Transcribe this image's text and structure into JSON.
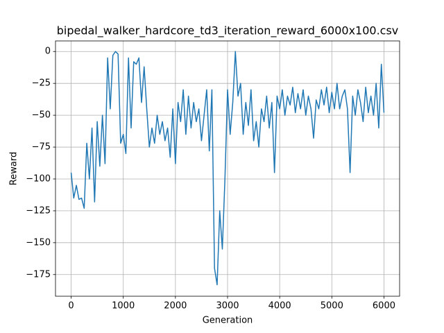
{
  "chart_data": {
    "type": "line",
    "title": "bipedal_walker_hardcore_td3_iteration_reward_6000x100.csv",
    "x_label": "Generation",
    "y_label": "Reward",
    "x": [
      0,
      50,
      100,
      150,
      200,
      250,
      300,
      350,
      400,
      450,
      500,
      550,
      600,
      650,
      700,
      750,
      800,
      850,
      900,
      950,
      1000,
      1050,
      1100,
      1150,
      1200,
      1250,
      1300,
      1350,
      1400,
      1450,
      1500,
      1550,
      1600,
      1650,
      1700,
      1750,
      1800,
      1850,
      1900,
      1950,
      2000,
      2050,
      2100,
      2150,
      2200,
      2250,
      2300,
      2350,
      2400,
      2450,
      2500,
      2550,
      2600,
      2650,
      2700,
      2750,
      2800,
      2850,
      2900,
      2950,
      3000,
      3050,
      3100,
      3150,
      3200,
      3250,
      3300,
      3350,
      3400,
      3450,
      3500,
      3550,
      3600,
      3650,
      3700,
      3750,
      3800,
      3850,
      3900,
      3950,
      4000,
      4050,
      4100,
      4150,
      4200,
      4250,
      4300,
      4350,
      4400,
      4450,
      4500,
      4550,
      4600,
      4650,
      4700,
      4750,
      4800,
      4850,
      4900,
      4950,
      5000,
      5050,
      5100,
      5150,
      5200,
      5250,
      5300,
      5350,
      5400,
      5450,
      5500,
      5550,
      5600,
      5650,
      5700,
      5750,
      5800,
      5850,
      5900,
      5950,
      6000
    ],
    "series": [
      {
        "color": "#1f77b4",
        "values": [
          -95,
          -115,
          -105,
          -116,
          -115,
          -123,
          -72,
          -100,
          -60,
          -118,
          -55,
          -90,
          -50,
          -88,
          -5,
          -45,
          -3,
          0,
          -2,
          -72,
          -65,
          -80,
          -5,
          -60,
          -8,
          -10,
          -5,
          -40,
          -12,
          -45,
          -75,
          -60,
          -72,
          -50,
          -65,
          -55,
          -70,
          -60,
          -83,
          -45,
          -88,
          -40,
          -55,
          -30,
          -65,
          -35,
          -60,
          -40,
          -55,
          -45,
          -70,
          -50,
          -30,
          -78,
          -30,
          -170,
          -183,
          -125,
          -155,
          -100,
          -30,
          -65,
          -40,
          0,
          -35,
          -25,
          -65,
          -40,
          -58,
          -30,
          -70,
          -55,
          -75,
          -45,
          -55,
          -35,
          -60,
          -40,
          -95,
          -35,
          -45,
          -30,
          -50,
          -35,
          -42,
          -28,
          -48,
          -33,
          -45,
          -30,
          -50,
          -35,
          -45,
          -68,
          -38,
          -45,
          -30,
          -42,
          -28,
          -48,
          -32,
          -45,
          -25,
          -45,
          -35,
          -30,
          -45,
          -95,
          -35,
          -50,
          -30,
          -40,
          -55,
          -28,
          -48,
          -35,
          -50,
          -25,
          -60,
          -10,
          -48
        ]
      }
    ],
    "xlim": [
      -300,
      6300
    ],
    "ylim": [
      -192,
      8.3
    ],
    "xticks": [
      0,
      1000,
      2000,
      3000,
      4000,
      5000,
      6000
    ],
    "yticks": [
      {
        "value": -175,
        "label": "−175"
      },
      {
        "value": -150,
        "label": "−150"
      },
      {
        "value": -125,
        "label": "−125"
      },
      {
        "value": -100,
        "label": "−100"
      },
      {
        "value": -75,
        "label": "−75"
      },
      {
        "value": -50,
        "label": "−50"
      },
      {
        "value": -25,
        "label": "−25"
      },
      0
    ],
    "grid": true
  }
}
